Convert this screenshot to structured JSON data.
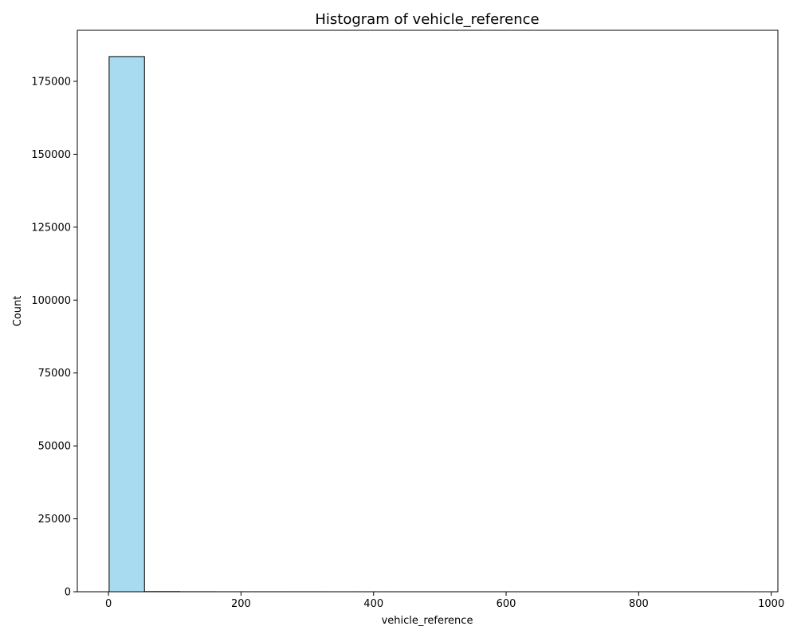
{
  "chart_data": {
    "type": "bar",
    "title": "Histogram of vehicle_reference",
    "xlabel": "vehicle_reference",
    "ylabel": "Count",
    "xlim": [
      -47,
      1010
    ],
    "ylim": [
      0,
      192500
    ],
    "x_ticks": [
      0,
      200,
      400,
      600,
      800,
      1000
    ],
    "y_ticks": [
      0,
      25000,
      50000,
      75000,
      100000,
      125000,
      150000,
      175000
    ],
    "bin_width": 53.33,
    "bins": [
      {
        "start": 1.0,
        "end": 54.33,
        "count": 183500
      },
      {
        "start": 54.33,
        "end": 107.67,
        "count": 60
      },
      {
        "start": 107.67,
        "end": 161.0,
        "count": 20
      },
      {
        "start": 161.0,
        "end": 214.33,
        "count": 10
      },
      {
        "start": 214.33,
        "end": 267.67,
        "count": 8
      },
      {
        "start": 267.67,
        "end": 321.0,
        "count": 5
      },
      {
        "start": 321.0,
        "end": 374.33,
        "count": 4
      },
      {
        "start": 374.33,
        "end": 427.67,
        "count": 3
      },
      {
        "start": 427.67,
        "end": 481.0,
        "count": 3
      },
      {
        "start": 481.0,
        "end": 534.33,
        "count": 2
      },
      {
        "start": 534.33,
        "end": 587.67,
        "count": 2
      },
      {
        "start": 587.67,
        "end": 641.0,
        "count": 2
      },
      {
        "start": 641.0,
        "end": 694.33,
        "count": 1
      },
      {
        "start": 694.33,
        "end": 747.67,
        "count": 1
      },
      {
        "start": 747.67,
        "end": 801.0,
        "count": 1
      },
      {
        "start": 801.0,
        "end": 854.33,
        "count": 1
      },
      {
        "start": 854.33,
        "end": 907.67,
        "count": 1
      },
      {
        "start": 907.67,
        "end": 961.0,
        "count": 1
      }
    ],
    "colors": {
      "bar_fill": "#a8dbef",
      "bar_edge": "#000000"
    },
    "grid": false,
    "legend": "none"
  }
}
